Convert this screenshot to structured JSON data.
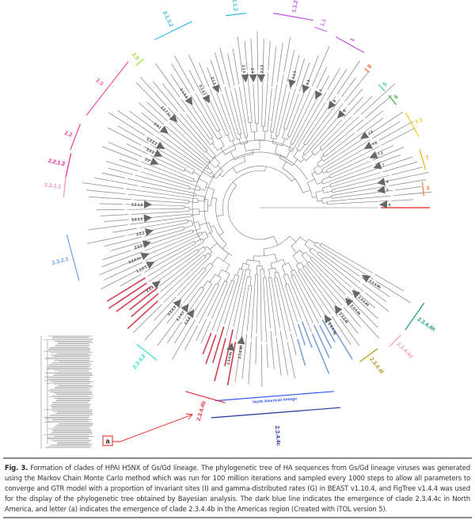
{
  "figure": {
    "caption_label": "Fig. 3.",
    "caption_text": " Formation of clades of HPAI H5NX of Gs/Gd lineage. The phylogenetic tree of HA sequences from Gs/Gd lineage viruses was generated using the Markov Chain Monte Carlo method which was run for 100 million iterations and sampled every 1000 steps to allow all parameters to converge and GTR model with a proportion of invariant sites (I) and gamma-distributed rates (G) in BEAST v1.10.4, and FigTree v1.4.4 was used for the display of the phylogenetic tree obtained by Bayesian analysis. The dark blue line indicates the emergence of clade 2.3.4.4c in North America, and letter (a) indicates the emergence of clade 2.3.4.4b in the Americas region (Created with iTOL version 5)."
  },
  "tree": {
    "clades": [
      {
        "label": "2.3.4.4h",
        "color": "#1a9a8a"
      },
      {
        "label": "2.3.4.4d",
        "color": "#f4a0b8"
      },
      {
        "label": "2.3.4.4f",
        "color": "#a89a10"
      },
      {
        "label": "North American lineage",
        "color": "#3355ee"
      },
      {
        "label": "2.3.4.4c",
        "color": "#22339a"
      },
      {
        "label": "2.3.4.4b",
        "color": "#e83040"
      },
      {
        "label": "2.3.4.2",
        "color": "#30e0c0"
      },
      {
        "label": "2.3.2.1",
        "color": "#6f9ae8"
      },
      {
        "label": "2.2.1.1",
        "color": "#f090c0"
      },
      {
        "label": "2.2.1.2",
        "color": "#e0208a"
      },
      {
        "label": "2.2",
        "color": "#e83c90"
      },
      {
        "label": "2.3",
        "color": "#f050a0"
      },
      {
        "label": "2.5",
        "color": "#99dd33"
      },
      {
        "label": "2.1.3.2",
        "color": "#33bbdd"
      },
      {
        "label": "2.1.2",
        "color": "#33bbdd"
      },
      {
        "label": "1.1.2",
        "color": "#c050e0"
      },
      {
        "label": "1.1",
        "color": "#d070e8"
      },
      {
        "label": "1",
        "color": "#c050d8"
      },
      {
        "label": "8",
        "color": "#f06030"
      },
      {
        "label": "5",
        "color": "#30d0b0"
      },
      {
        "label": "6",
        "color": "#33aa44"
      },
      {
        "label": "7.2",
        "color": "#e8d020"
      },
      {
        "label": "7",
        "color": "#f0b000"
      },
      {
        "label": "3",
        "color": "#f08040"
      }
    ],
    "collapsed_nodes": [
      "2.1.1",
      "2.4",
      "2.1.2",
      "1.1.1",
      "1.1",
      "1",
      "6",
      "5",
      "7.3",
      "7.2",
      "7.1",
      "7",
      "4",
      "3",
      "0",
      "2.3.4.4h",
      "2.3.4.4d",
      "2.3.4.4e",
      "2.3.4.4f",
      "2.3.4.4g",
      "2.3.4.4b",
      "2.3.4.4a",
      "2.3.4",
      "2.3.4.1",
      "2.3.4.3",
      "2.3.3",
      "2.3.2.1",
      "2.3.2.1a",
      "2.3.2",
      "2.2.1",
      "2.2.1.1",
      "2.2.1.2",
      "2.2",
      "2.2.2",
      "2.2.2.1",
      "2.3.1",
      "2.3.2.1c",
      "2.1.3.3",
      "2.1.3.1",
      "2.1.3"
    ],
    "outgroup_color": "#e82020",
    "highlight_colors": {
      "americas_b": "#d04050",
      "north_america_c": "#7fa0d8"
    },
    "inset_marker": "a",
    "arrow_color": "#e82020"
  }
}
